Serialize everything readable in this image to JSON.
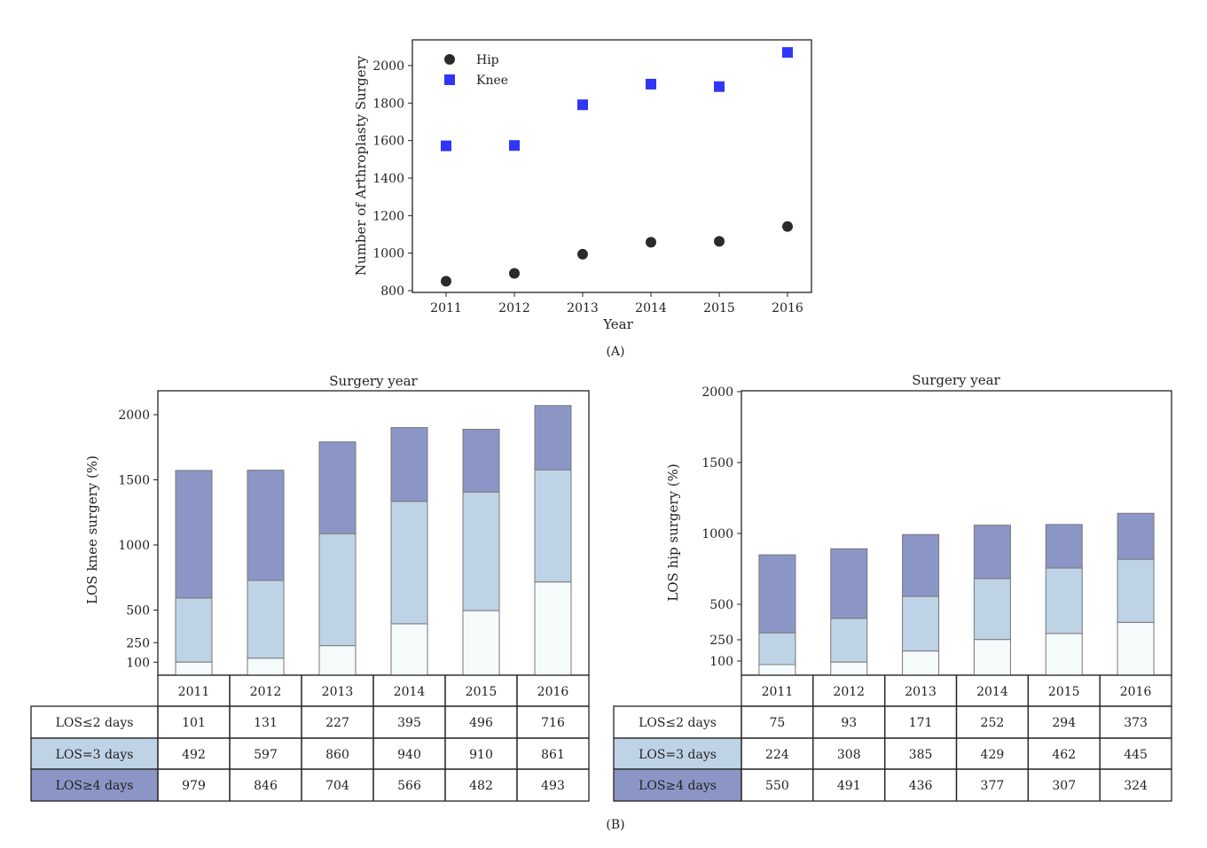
{
  "chart_data": [
    {
      "id": "A",
      "type": "scatter",
      "xlabel": "Year",
      "ylabel": "Number of Arthroplasty Surgery",
      "x": [
        2011,
        2012,
        2013,
        2014,
        2015,
        2016
      ],
      "ylim": [
        800,
        2100
      ],
      "yticks": [
        800,
        1000,
        1200,
        1400,
        1600,
        1800,
        2000
      ],
      "legend_position": "top-left",
      "series": [
        {
          "name": "Hip",
          "marker": "circle",
          "color": "#2b2b2b",
          "values": [
            850,
            892,
            994,
            1058,
            1063,
            1142
          ]
        },
        {
          "name": "Knee",
          "marker": "square",
          "color": "#2f36f5",
          "values": [
            1572,
            1574,
            1791,
            1901,
            1888,
            2070
          ]
        }
      ],
      "panel_label": "(A)"
    },
    {
      "id": "B-knee",
      "type": "bar",
      "stacked": true,
      "title": "Surgery year",
      "ylabel": "LOS knee surgery (%)",
      "categories": [
        "2011",
        "2012",
        "2013",
        "2014",
        "2015",
        "2016"
      ],
      "ylim": [
        0,
        2200
      ],
      "yticks": [
        100,
        250,
        500,
        1000,
        1500,
        2000
      ],
      "series": [
        {
          "name": "LOS≤2 days",
          "color": "#f5fbfb",
          "values": [
            101,
            131,
            227,
            395,
            496,
            716
          ]
        },
        {
          "name": "LOS=3 days",
          "color": "#bfd3e6",
          "values": [
            492,
            597,
            860,
            940,
            910,
            861
          ]
        },
        {
          "name": "LOS≥4 days",
          "color": "#8c96c6",
          "values": [
            979,
            846,
            704,
            566,
            482,
            493
          ]
        }
      ]
    },
    {
      "id": "B-hip",
      "type": "bar",
      "stacked": true,
      "title": "Surgery year",
      "ylabel": "LOS hip surgery (%)",
      "categories": [
        "2011",
        "2012",
        "2013",
        "2014",
        "2015",
        "2016"
      ],
      "ylim": [
        0,
        2000
      ],
      "yticks": [
        100,
        250,
        500,
        1000,
        1500,
        2000
      ],
      "series": [
        {
          "name": "LOS≤2 days",
          "color": "#f5fbfb",
          "values": [
            75,
            93,
            171,
            252,
            294,
            373
          ]
        },
        {
          "name": "LOS=3 days",
          "color": "#bfd3e6",
          "values": [
            224,
            308,
            385,
            429,
            462,
            445
          ]
        },
        {
          "name": "LOS≥4 days",
          "color": "#8c96c6",
          "values": [
            550,
            491,
            436,
            377,
            307,
            324
          ]
        }
      ]
    }
  ],
  "figure_label_bottom": "(B)"
}
